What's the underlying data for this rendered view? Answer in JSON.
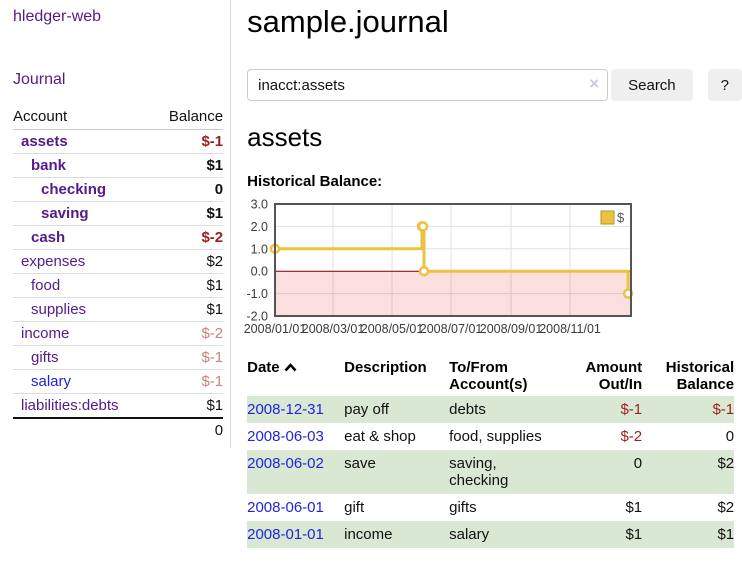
{
  "colors": {
    "link_purple": "#551a8b",
    "link_blue": "#2123dd",
    "negative": "#9d1e1e",
    "negative_faded": "#c5817e",
    "row_green": "#d9e8d3",
    "series_gold": "#edc240",
    "zero_line": "#8b0000"
  },
  "sidebar": {
    "app_title": "hledger-web",
    "journal_link": "Journal",
    "accounts_table": {
      "headers": {
        "account": "Account",
        "balance": "Balance"
      },
      "rows": [
        {
          "name": "assets",
          "depth": 1,
          "bold": true,
          "link_color": "purple",
          "balance": "$-1",
          "balance_color": "neg"
        },
        {
          "name": "bank",
          "depth": 2,
          "bold": true,
          "link_color": "purple",
          "balance": "$1",
          "balance_color": ""
        },
        {
          "name": "checking",
          "depth": 3,
          "bold": true,
          "link_color": "purple",
          "balance": "0",
          "balance_color": ""
        },
        {
          "name": "saving",
          "depth": 3,
          "bold": true,
          "link_color": "purple",
          "balance": "$1",
          "balance_color": ""
        },
        {
          "name": "cash",
          "depth": 2,
          "bold": true,
          "link_color": "purple",
          "balance": "$-2",
          "balance_color": "neg"
        },
        {
          "name": "expenses",
          "depth": 1,
          "bold": false,
          "link_color": "purple",
          "balance": "$2",
          "balance_color": ""
        },
        {
          "name": "food",
          "depth": 2,
          "bold": false,
          "link_color": "purple",
          "balance": "$1",
          "balance_color": ""
        },
        {
          "name": "supplies",
          "depth": 2,
          "bold": false,
          "link_color": "purple",
          "balance": "$1",
          "balance_color": ""
        },
        {
          "name": "income",
          "depth": 1,
          "bold": false,
          "link_color": "purple",
          "balance": "$-2",
          "balance_color": "negfade"
        },
        {
          "name": "gifts",
          "depth": 2,
          "bold": false,
          "link_color": "purple",
          "balance": "$-1",
          "balance_color": "negfade"
        },
        {
          "name": "salary",
          "depth": 2,
          "bold": false,
          "link_color": "blue",
          "balance": "$-1",
          "balance_color": "negfade"
        },
        {
          "name": "liabilities:debts",
          "depth": 1,
          "bold": false,
          "link_color": "purple",
          "balance": "$1",
          "balance_color": ""
        }
      ],
      "total": "0"
    }
  },
  "header": {
    "title": "sample.journal"
  },
  "search": {
    "value": "inacct:assets",
    "clear_icon": "×",
    "button_label": "Search",
    "help_label": "?"
  },
  "account_page": {
    "heading": "assets",
    "chart_title": "Historical Balance:"
  },
  "chart_data": {
    "type": "line",
    "title": "Historical Balance:",
    "step": true,
    "series": [
      {
        "name": "$",
        "color": "#edc240",
        "points": [
          [
            "2008-01-01",
            1
          ],
          [
            "2008-06-01",
            2
          ],
          [
            "2008-06-02",
            2
          ],
          [
            "2008-06-03",
            0
          ],
          [
            "2008-12-31",
            -1
          ]
        ]
      }
    ],
    "xlim": [
      "2008-01-01",
      "2009-01-03"
    ],
    "ylim": [
      -2,
      3
    ],
    "y_ticks": [
      {
        "value": 3,
        "label": "3.0"
      },
      {
        "value": 2,
        "label": "2.0"
      },
      {
        "value": 1,
        "label": "1.0"
      },
      {
        "value": 0,
        "label": "0.0"
      },
      {
        "value": -1,
        "label": "-1.0"
      },
      {
        "value": -2,
        "label": "-2.0"
      }
    ],
    "x_ticks": [
      {
        "date": "2008-01-01",
        "label": "2008/01/01"
      },
      {
        "date": "2008-03-01",
        "label": "2008/03/01"
      },
      {
        "date": "2008-05-01",
        "label": "2008/05/01"
      },
      {
        "date": "2008-07-01",
        "label": "2008/07/01"
      },
      {
        "date": "2008-09-01",
        "label": "2008/09/01"
      },
      {
        "date": "2008-11-01",
        "label": "2008/11/01"
      }
    ],
    "legend": {
      "label": "$",
      "position": "top-right"
    },
    "negative_region": {
      "from": -2,
      "to": 0,
      "color": "rgba(230,40,40,0.15)"
    },
    "zero_line_color": "#8b0000",
    "grid": true
  },
  "register": {
    "headers": {
      "date": "Date",
      "description": "Description",
      "accounts": "To/From\nAccount(s)",
      "amount": "Amount\nOut/In",
      "balance": "Historical\nBalance"
    },
    "rows": [
      {
        "date": "2008-12-31",
        "description": "pay off",
        "accounts": "debts",
        "amount": "$-1",
        "amount_color": "neg",
        "balance": "$-1",
        "balance_color": "neg"
      },
      {
        "date": "2008-06-03",
        "description": "eat & shop",
        "accounts": "food, supplies",
        "amount": "$-2",
        "amount_color": "neg",
        "balance": "0",
        "balance_color": ""
      },
      {
        "date": "2008-06-02",
        "description": "save",
        "accounts": "saving,\nchecking",
        "amount": "0",
        "amount_color": "",
        "balance": "$2",
        "balance_color": ""
      },
      {
        "date": "2008-06-01",
        "description": "gift",
        "accounts": "gifts",
        "amount": "$1",
        "amount_color": "",
        "balance": "$2",
        "balance_color": ""
      },
      {
        "date": "2008-01-01",
        "description": "income",
        "accounts": "salary",
        "amount": "$1",
        "amount_color": "",
        "balance": "$1",
        "balance_color": ""
      }
    ]
  }
}
